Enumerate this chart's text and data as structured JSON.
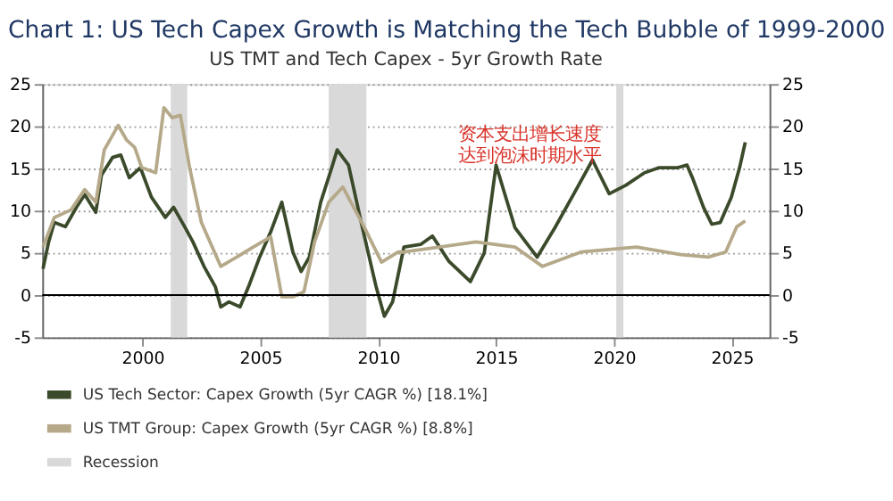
{
  "chart_data": {
    "type": "line",
    "title": "Chart 1: US Tech Capex Growth is Matching the Tech Bubble of 1999-2000",
    "subtitle": "US TMT and Tech Capex - 5yr Growth Rate",
    "xlim": [
      1995.75,
      2026.6
    ],
    "xticks": [
      2000,
      2005,
      2010,
      2015,
      2020,
      2025
    ],
    "ylim": [
      -5,
      25
    ],
    "yticks": [
      -5,
      0,
      5,
      10,
      15,
      20,
      25
    ],
    "y2lim": [
      -5,
      25
    ],
    "y2ticks": [
      -5,
      0,
      5,
      10,
      15,
      20,
      25
    ],
    "grid": "y",
    "legend": "bottom left",
    "line_style": "solid",
    "marker": "none",
    "series": [
      {
        "name": "US Tech Sector: Capex Growth (5yr CAGR %) [18.1%]",
        "color": "#3b4a2a",
        "x": [
          1995.78,
          1996.02,
          1996.26,
          1996.73,
          1997.2,
          1997.55,
          1998.02,
          1998.26,
          1998.73,
          1999.08,
          1999.44,
          1999.91,
          2000.38,
          2000.97,
          2001.32,
          2001.79,
          2002.14,
          2002.61,
          2003.09,
          2003.32,
          2003.67,
          2004.14,
          2004.5,
          2004.97,
          2005.44,
          2005.91,
          2006.38,
          2006.73,
          2007.08,
          2007.56,
          2008.03,
          2008.26,
          2008.74,
          2009.32,
          2009.91,
          2010.26,
          2010.61,
          2011.09,
          2011.8,
          2012.3,
          2013.0,
          2013.91,
          2014.5,
          2015.0,
          2015.8,
          2016.74,
          2017.5,
          2018.3,
          2019.09,
          2019.8,
          2020.5,
          2021.3,
          2021.92,
          2022.7,
          2023.1,
          2023.33,
          2023.8,
          2024.15,
          2024.51,
          2024.98,
          2025.33,
          2025.57
        ],
        "values": [
          3.1,
          6.3,
          8.6,
          8.1,
          10.4,
          11.9,
          9.8,
          14.2,
          16.3,
          16.6,
          13.9,
          15.1,
          11.6,
          9.2,
          10.4,
          8.1,
          6.3,
          3.4,
          1.0,
          -1.4,
          -0.8,
          -1.4,
          1.0,
          4.5,
          7.5,
          11.0,
          5.1,
          2.8,
          4.5,
          11.0,
          15.1,
          17.2,
          15.4,
          8.1,
          1.0,
          -2.5,
          -0.8,
          5.7,
          6.0,
          7.0,
          4.0,
          1.6,
          5.0,
          15.4,
          8.0,
          4.5,
          8.0,
          12.0,
          16.0,
          12.0,
          13.0,
          14.5,
          15.1,
          15.1,
          15.4,
          13.9,
          10.4,
          8.4,
          8.6,
          11.6,
          15.1,
          18.1
        ]
      },
      {
        "name": "US TMT Group: Capex Growth (5yr CAGR %) [8.8%]",
        "color": "#b5a98a",
        "x": [
          1995.78,
          1996.26,
          1996.97,
          1997.55,
          1998.02,
          1998.38,
          1998.97,
          1999.32,
          1999.67,
          1999.97,
          2000.56,
          2000.91,
          2001.26,
          2001.61,
          2002.0,
          2002.5,
          2003.32,
          2004.0,
          2004.7,
          2005.44,
          2005.91,
          2006.38,
          2006.85,
          2007.3,
          2007.9,
          2008.5,
          2009.4,
          2010.14,
          2010.85,
          2011.09,
          2014.15,
          2015.8,
          2016.97,
          2018.6,
          2020.96,
          2022.84,
          2024.0,
          2024.74,
          2025.21,
          2025.57
        ],
        "values": [
          5.7,
          9.2,
          10.1,
          12.5,
          11.0,
          17.2,
          20.1,
          18.4,
          17.5,
          15.1,
          14.5,
          22.2,
          21.0,
          21.3,
          15.1,
          8.6,
          3.4,
          4.5,
          5.7,
          6.9,
          -0.2,
          -0.2,
          0.4,
          6.3,
          11.0,
          12.8,
          8.1,
          3.9,
          5.1,
          5.1,
          6.3,
          5.7,
          3.4,
          5.1,
          5.7,
          4.8,
          4.5,
          5.1,
          8.1,
          8.8
        ]
      }
    ],
    "bands": [
      {
        "axis": "x",
        "from": 2001.2,
        "to": 2001.9,
        "label": "Recession",
        "color": "#d9d9d9"
      },
      {
        "axis": "x",
        "from": 2007.9,
        "to": 2009.5,
        "color": "#d9d9d9"
      },
      {
        "axis": "x",
        "from": 2020.1,
        "to": 2020.4,
        "color": "#d9d9d9"
      }
    ],
    "ref_lines": [
      {
        "axis": "y",
        "value": 0,
        "color": "#000000"
      }
    ],
    "annotations": [
      "资本支出增长速度达到泡沫时期水平"
    ]
  }
}
